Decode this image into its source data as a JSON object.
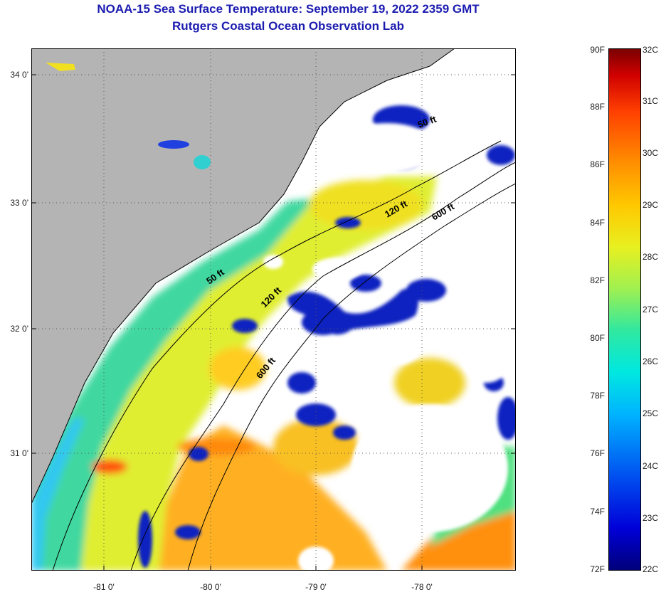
{
  "title_line1": "NOAA-15 Sea Surface Temperature:  September 19, 2022 2359 GMT",
  "title_line2": "Rutgers Coastal Ocean Observation Lab",
  "map": {
    "lat_labels": [
      "34 0'",
      "33 0'",
      "32 0'",
      "31 0'"
    ],
    "lon_labels": [
      "-81 0'",
      "-80 0'",
      "-79 0'",
      "-78 0'"
    ],
    "contour_labels": [
      "50 ft",
      "50 ft",
      "120 ft",
      "120 ft",
      "600 ft",
      "600 ft"
    ],
    "colors": {
      "land": "#b4b4b4",
      "cloud": "#ffffff",
      "coast": "#000000"
    }
  },
  "colorbar": {
    "fahrenheit_labels": [
      "90F",
      "88F",
      "86F",
      "84F",
      "82F",
      "80F",
      "78F",
      "76F",
      "74F",
      "72F"
    ],
    "celsius_labels": [
      "32C",
      "31C",
      "30C",
      "29C",
      "28C",
      "27C",
      "26C",
      "25C",
      "24C",
      "23C",
      "22C"
    ]
  }
}
